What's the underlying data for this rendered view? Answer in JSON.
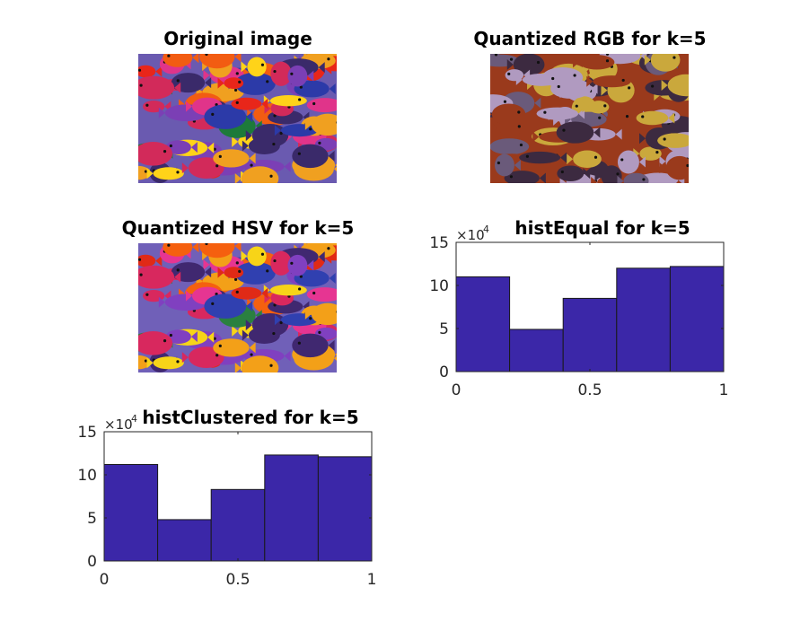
{
  "figure": {
    "colors": {
      "bar_fill": "#3b27a8",
      "bar_edge": "#1a1a1a",
      "axis": "#262626"
    }
  },
  "panels": {
    "original": {
      "title": "Original image"
    },
    "rgb": {
      "title": "Quantized RGB for k=5",
      "palette": [
        "#b09ac0",
        "#6a5a7a",
        "#9a3a1c",
        "#caa83c",
        "#3c2a40"
      ]
    },
    "hsv": {
      "title": "Quantized HSV for k=5"
    }
  },
  "chart_data": [
    {
      "type": "bar",
      "title": "histEqual for k=5",
      "x": [
        0.1,
        0.3,
        0.5,
        0.7,
        0.9
      ],
      "bin_width": 0.2,
      "values": [
        11,
        4.9,
        8.5,
        12,
        12.2
      ],
      "xlim": [
        0,
        1
      ],
      "ylim": [
        0,
        15
      ],
      "xticks": [
        "0",
        "0.5",
        "1"
      ],
      "yticks": [
        "0",
        "5",
        "10",
        "15"
      ],
      "exponent_label": "×10",
      "exponent_power": "4"
    },
    {
      "type": "bar",
      "title": "histClustered for k=5",
      "x": [
        0.1,
        0.3,
        0.5,
        0.7,
        0.9
      ],
      "bin_width": 0.2,
      "values": [
        11.2,
        4.8,
        8.3,
        12.3,
        12.1
      ],
      "xlim": [
        0,
        1
      ],
      "ylim": [
        0,
        15
      ],
      "xticks": [
        "0",
        "0.5",
        "1"
      ],
      "yticks": [
        "0",
        "5",
        "10",
        "15"
      ],
      "exponent_label": "×10",
      "exponent_power": "4"
    }
  ]
}
